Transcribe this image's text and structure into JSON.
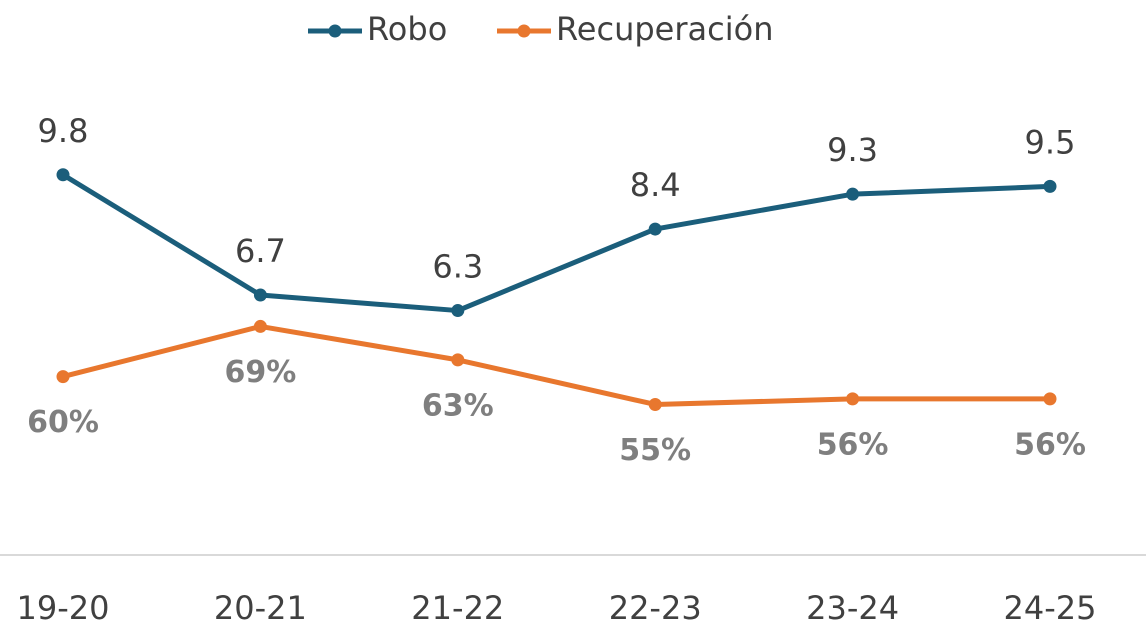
{
  "chart_data": {
    "type": "line",
    "categories": [
      "19-20",
      "20-21",
      "21-22",
      "22-23",
      "23-24",
      "24-25"
    ],
    "series": [
      {
        "name": "Robo",
        "color": "#1b5e7b",
        "values": [
          9.8,
          6.7,
          6.3,
          8.4,
          9.3,
          9.5
        ]
      },
      {
        "name": "Recuperación",
        "color": "#e8772e",
        "axis": "y2",
        "values": [
          60,
          69,
          63,
          55,
          56,
          56
        ],
        "value_labels": [
          "60%",
          "69%",
          "63%",
          "55%",
          "56%",
          "56%"
        ]
      }
    ],
    "ylim": [
      0,
      12.5
    ],
    "y2lim": [
      28,
      115
    ],
    "legend": "top"
  }
}
